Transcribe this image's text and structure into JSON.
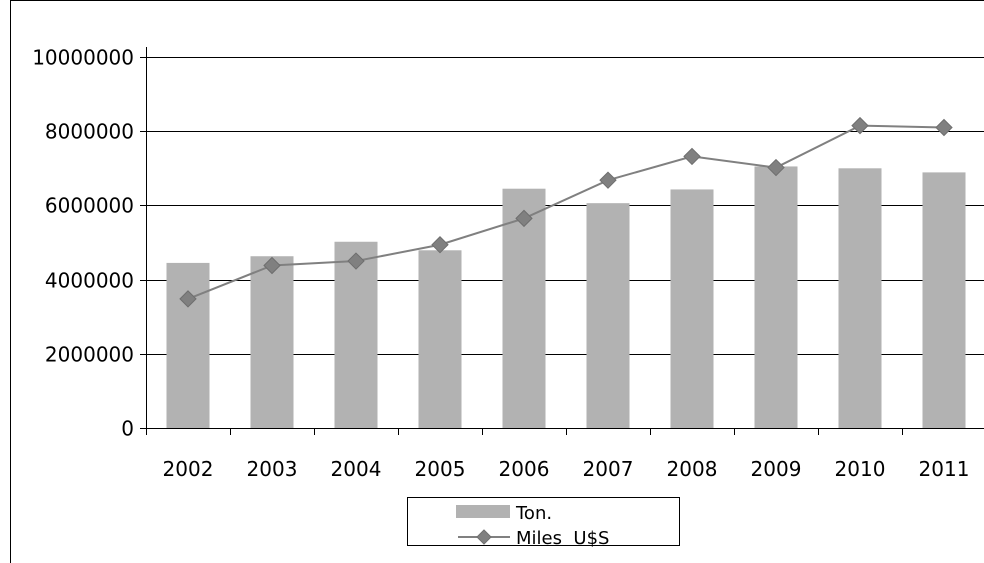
{
  "chart_data": {
    "type": "bar",
    "title": "",
    "xlabel": "",
    "ylabel": "",
    "categories": [
      "2002",
      "2003",
      "2004",
      "2005",
      "2006",
      "2007",
      "2008",
      "2009",
      "2010",
      "2011"
    ],
    "ylim": [
      0,
      10000000
    ],
    "y_ticks": [
      "0",
      "2000000",
      "4000000",
      "6000000",
      "8000000",
      "10000000"
    ],
    "grid": true,
    "legend_position": "bottom",
    "series": [
      {
        "name": "Ton.",
        "type": "bar",
        "color": "#b2b2b2",
        "values": [
          4450000,
          4630000,
          5020000,
          4790000,
          6450000,
          6060000,
          6430000,
          7050000,
          7000000,
          6890000
        ]
      },
      {
        "name": "Miles  U$S",
        "type": "line",
        "marker": "diamond",
        "color": "#808080",
        "values": [
          3480000,
          4380000,
          4500000,
          4940000,
          5650000,
          6680000,
          7320000,
          7020000,
          8150000,
          8100000
        ]
      }
    ]
  }
}
